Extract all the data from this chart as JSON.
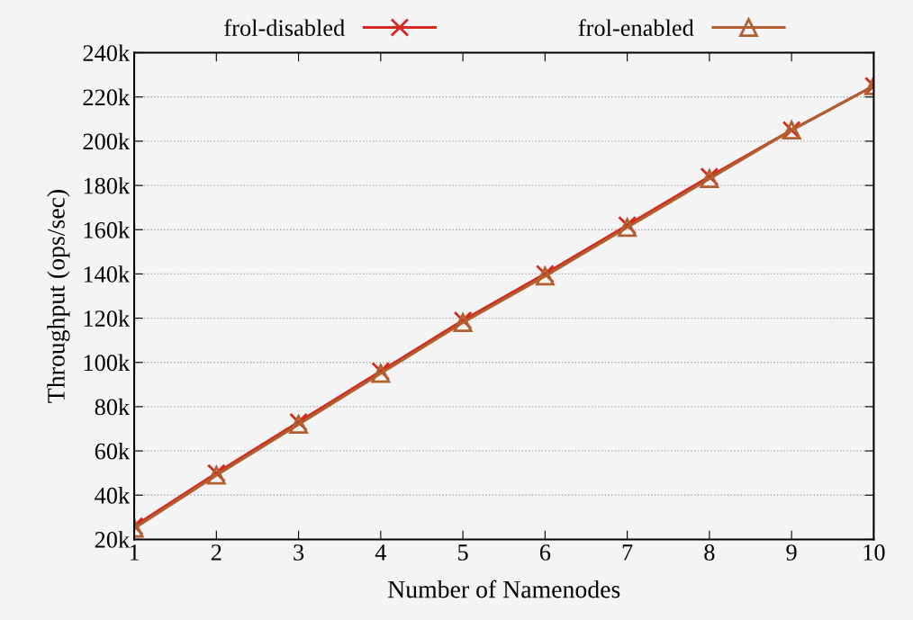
{
  "chart_data": {
    "type": "line",
    "xlabel": "Number of Namenodes",
    "ylabel": "Throughput (ops/sec)",
    "x": [
      1,
      2,
      3,
      4,
      5,
      6,
      7,
      8,
      9,
      10
    ],
    "series": [
      {
        "name": "frol-disabled",
        "color": "#d42a20",
        "marker": "cross",
        "values": [
          26000,
          50000,
          73000,
          96000,
          119000,
          140000,
          162000,
          184000,
          205000,
          225000
        ]
      },
      {
        "name": "frol-enabled",
        "color": "#b06030",
        "marker": "triangle",
        "values": [
          25000,
          49000,
          72000,
          95000,
          118000,
          139000,
          161000,
          183000,
          205000,
          225000
        ]
      }
    ],
    "xlim": [
      1,
      10
    ],
    "xticks": [
      1,
      2,
      3,
      4,
      5,
      6,
      7,
      8,
      9,
      10
    ],
    "ylim": [
      20000,
      240000
    ],
    "yticks": [
      {
        "value": 20000,
        "label": "20k"
      },
      {
        "value": 40000,
        "label": "40k"
      },
      {
        "value": 60000,
        "label": "60k"
      },
      {
        "value": 80000,
        "label": "80k"
      },
      {
        "value": 100000,
        "label": "100k"
      },
      {
        "value": 120000,
        "label": "120k"
      },
      {
        "value": 140000,
        "label": "140k"
      },
      {
        "value": 160000,
        "label": "160k"
      },
      {
        "value": 180000,
        "label": "180k"
      },
      {
        "value": 200000,
        "label": "200k"
      },
      {
        "value": 220000,
        "label": "220k"
      },
      {
        "value": 240000,
        "label": "240k"
      }
    ],
    "grid": "y",
    "legend": "top",
    "line_style": "solid"
  }
}
